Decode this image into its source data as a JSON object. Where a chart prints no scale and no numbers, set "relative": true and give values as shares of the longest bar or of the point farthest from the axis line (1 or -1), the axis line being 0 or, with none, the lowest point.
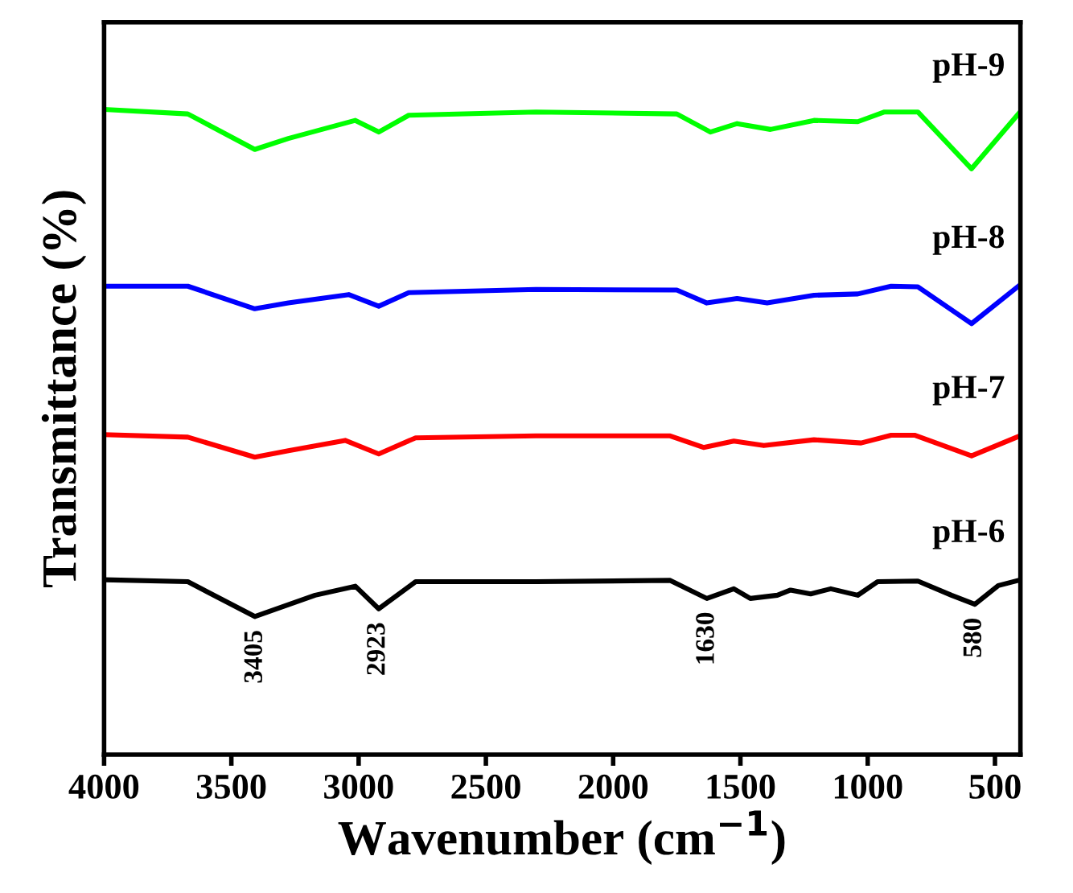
{
  "chart_data": {
    "type": "line",
    "relative": true,
    "xlabel": "Wavenumber (cm$^{−1}$)",
    "ylabel": "Transmittance (%)",
    "xlim": [
      4000,
      400
    ],
    "xticks": [
      4000,
      3500,
      3000,
      2500,
      2000,
      1500,
      1000,
      500
    ],
    "grid": false,
    "legend": false,
    "marker": "none",
    "line_style": "solid",
    "series": [
      {
        "name": "pH-6",
        "color": "#000000",
        "x": [
          4000,
          3671,
          3408,
          3171,
          3013,
          2921,
          2776,
          2303,
          1776,
          1632,
          1526,
          1461,
          1355,
          1303,
          1224,
          1145,
          1039,
          961,
          803,
          671,
          579,
          487,
          408
        ],
        "values": [
          0.271,
          0.268,
          0.214,
          0.247,
          0.261,
          0.226,
          0.268,
          0.268,
          0.27,
          0.242,
          0.257,
          0.242,
          0.247,
          0.255,
          0.249,
          0.257,
          0.247,
          0.268,
          0.269,
          0.247,
          0.233,
          0.262,
          0.27
        ]
      },
      {
        "name": "pH-7",
        "color": "#ff0000",
        "x": [
          4000,
          3671,
          3408,
          3276,
          3053,
          2921,
          2776,
          2303,
          1776,
          1645,
          1526,
          1408,
          1211,
          1026,
          908,
          816,
          592,
          408
        ],
        "values": [
          0.496,
          0.492,
          0.461,
          0.471,
          0.487,
          0.466,
          0.491,
          0.494,
          0.494,
          0.476,
          0.486,
          0.479,
          0.488,
          0.483,
          0.495,
          0.495,
          0.463,
          0.493
        ]
      },
      {
        "name": "pH-8",
        "color": "#0000ff",
        "x": [
          4000,
          3671,
          3408,
          3276,
          3039,
          2921,
          2803,
          2303,
          1750,
          1632,
          1513,
          1395,
          1211,
          1039,
          908,
          803,
          592,
          408
        ],
        "values": [
          0.726,
          0.726,
          0.691,
          0.7,
          0.713,
          0.695,
          0.716,
          0.721,
          0.72,
          0.7,
          0.707,
          0.7,
          0.712,
          0.714,
          0.726,
          0.725,
          0.668,
          0.726
        ]
      },
      {
        "name": "pH-9",
        "color": "#00ff00",
        "x": [
          4000,
          3671,
          3408,
          3276,
          3013,
          2921,
          2803,
          2303,
          1750,
          1618,
          1513,
          1382,
          1211,
          1039,
          934,
          803,
          592,
          408
        ],
        "values": [
          1.0,
          0.993,
          0.938,
          0.955,
          0.983,
          0.965,
          0.991,
          0.996,
          0.993,
          0.965,
          0.978,
          0.969,
          0.983,
          0.981,
          0.996,
          0.996,
          0.908,
          0.993
        ]
      }
    ],
    "annotations": [
      {
        "text": "3405",
        "x": 3405,
        "y": 0.214
      },
      {
        "text": "2923",
        "x": 2923,
        "y": 0.226
      },
      {
        "text": "1630",
        "x": 1630,
        "y": 0.242
      },
      {
        "text": "580",
        "x": 580,
        "y": 0.233
      }
    ]
  }
}
